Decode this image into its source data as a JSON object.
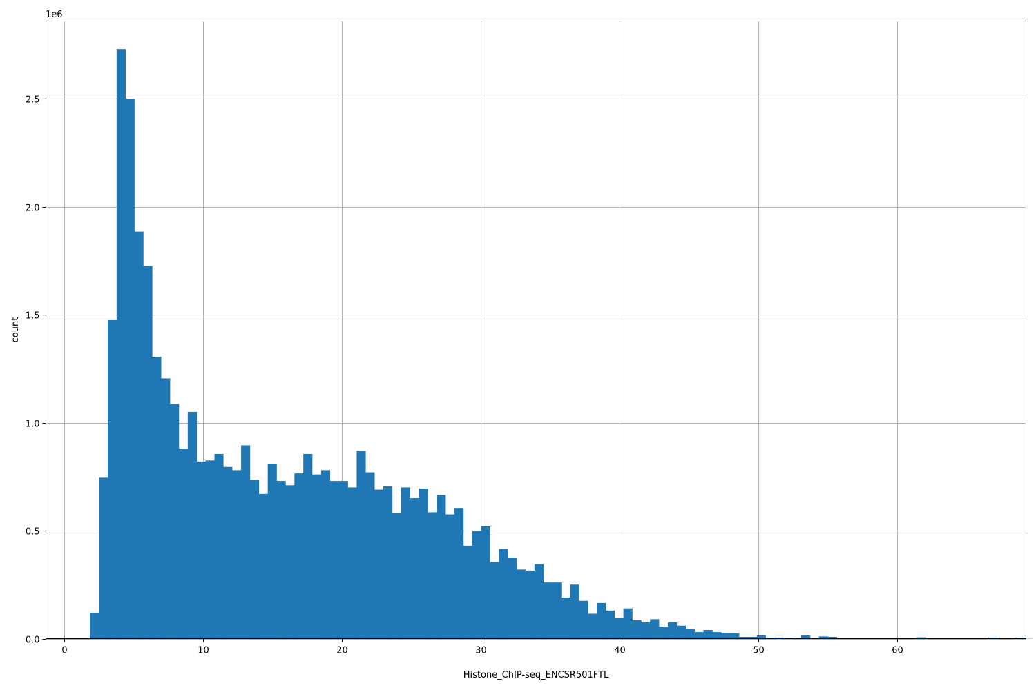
{
  "chart_data": {
    "type": "bar",
    "title": "",
    "xlabel": "Histone_ChIP-seq_ENCSR501FTL",
    "ylabel": "count",
    "y_offset_label": "1e6",
    "y_multiplier": 1000000,
    "xlim": [
      -1.3,
      69.3
    ],
    "ylim": [
      0,
      2860000
    ],
    "grid": true,
    "legend": "none",
    "bar_color": "#1f77b4",
    "bin_start": 1.87,
    "bin_width": 0.6405,
    "counts": [
      120000,
      745000,
      1475000,
      2730000,
      2500000,
      1885000,
      1725000,
      1305000,
      1205000,
      1085000,
      880000,
      1050000,
      820000,
      825000,
      855000,
      795000,
      780000,
      895000,
      735000,
      670000,
      810000,
      730000,
      710000,
      765000,
      855000,
      760000,
      780000,
      730000,
      730000,
      700000,
      870000,
      770000,
      690000,
      705000,
      580000,
      700000,
      650000,
      695000,
      585000,
      665000,
      575000,
      605000,
      430000,
      500000,
      520000,
      355000,
      415000,
      375000,
      320000,
      315000,
      345000,
      260000,
      260000,
      190000,
      250000,
      175000,
      115000,
      165000,
      130000,
      95000,
      140000,
      85000,
      75000,
      90000,
      55000,
      75000,
      60000,
      45000,
      30000,
      40000,
      30000,
      25000,
      25000,
      8000,
      8000,
      15000,
      3000,
      5000,
      3000,
      2000,
      15000,
      2000,
      10000,
      8000,
      1000,
      1000,
      1000,
      1000,
      1000,
      1000,
      1000,
      1000,
      1000,
      6000,
      1000,
      1000,
      1000,
      1000,
      1000,
      1000,
      1000,
      4000,
      1000,
      1000,
      3000,
      1000
    ],
    "x_ticks": [
      0,
      10,
      20,
      30,
      40,
      50,
      60
    ],
    "x_tick_labels": [
      "0",
      "10",
      "20",
      "30",
      "40",
      "50",
      "60"
    ],
    "y_ticks": [
      0,
      500000,
      1000000,
      1500000,
      2000000,
      2500000
    ],
    "y_tick_labels": [
      "0.0",
      "0.5",
      "1.0",
      "1.5",
      "2.0",
      "2.5"
    ]
  }
}
